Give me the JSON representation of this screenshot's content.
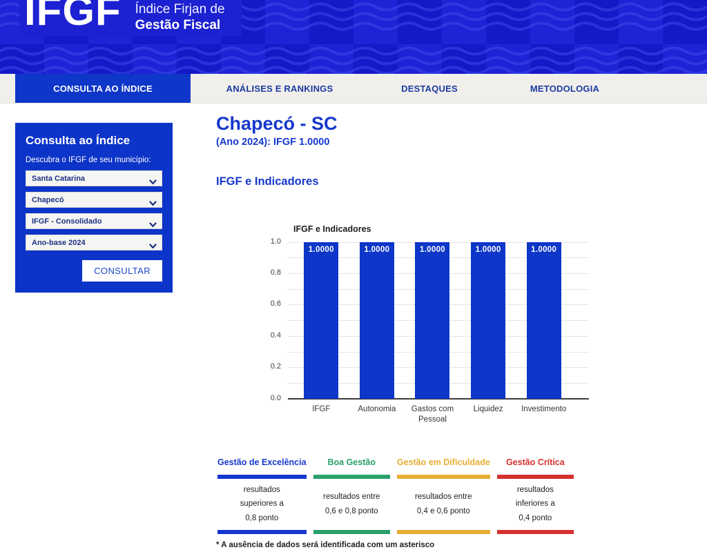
{
  "header": {
    "logo": "IFGF",
    "tagline_line1": "Índice Firjan de",
    "tagline_line2": "Gestão Fiscal"
  },
  "nav": {
    "tabs": [
      {
        "label": "CONSULTA AO ÍNDICE",
        "active": true
      },
      {
        "label": "ANÁLISES E RANKINGS",
        "active": false
      },
      {
        "label": "DESTAQUES",
        "active": false
      },
      {
        "label": "METODOLOGIA",
        "active": false
      }
    ]
  },
  "sidebar": {
    "title": "Consulta ao Índice",
    "subtitle": "Descubra o IFGF de seu município:",
    "selects": [
      {
        "name": "state-select",
        "value": "Santa Catarina"
      },
      {
        "name": "city-select",
        "value": "Chapecó"
      },
      {
        "name": "index-select",
        "value": "IFGF - Consolidado"
      },
      {
        "name": "year-select",
        "value": "Ano-base 2024"
      }
    ],
    "button_label": "CONSULTAR"
  },
  "main": {
    "title": "Chapecó - SC",
    "subtitle": "(Ano 2024): IFGF 1.0000",
    "section_heading": "IFGF e Indicadores"
  },
  "chart_data": {
    "type": "bar",
    "title": "IFGF e Indicadores",
    "categories": [
      "IFGF",
      "Autonomia",
      "Gastos com\nPessoal",
      "Liquidez",
      "Investimento"
    ],
    "values": [
      1.0,
      1.0,
      1.0,
      1.0,
      1.0
    ],
    "bar_labels": [
      "1.0000",
      "1.0000",
      "1.0000",
      "1.0000",
      "1.0000"
    ],
    "xlabel": "",
    "ylabel": "",
    "ylim": [
      0,
      1.0
    ],
    "yticks": [
      0.0,
      0.2,
      0.4,
      0.6,
      0.8,
      1.0
    ],
    "minor_grid_step": 0.1,
    "grid": true,
    "legend_position": "none",
    "bar_color": "#0e36c8"
  },
  "legend": {
    "items": [
      {
        "label": "Gestão de Excelência",
        "color": "#1638d0",
        "lines": [
          "resultados",
          "superiores a",
          "0,8 ponto"
        ]
      },
      {
        "label": "Boa Gestão",
        "color": "#2aa06b",
        "lines": [
          "resultados entre",
          "0,6 e 0,8 ponto"
        ]
      },
      {
        "label": "Gestão em Dificuldade",
        "color": "#e7ae35",
        "lines": [
          "resultados entre",
          "0,4 e 0,6 ponto"
        ]
      },
      {
        "label": "Gestão Crítica",
        "color": "#d5312d",
        "lines": [
          "resultados",
          "inferiores a",
          "0,4 ponto"
        ]
      }
    ]
  },
  "footnote": "* A ausência de dados será identificada com um asterisco",
  "colors": {
    "primary_blue": "#0e36c8",
    "header_blue_dark": "#1519c7",
    "header_blue_light": "#1e23d6",
    "header_wave": "#3a49e8",
    "navbar_bg": "#f0efec",
    "nav_text": "#1d3b9f",
    "heading_text": "#1638cc"
  }
}
